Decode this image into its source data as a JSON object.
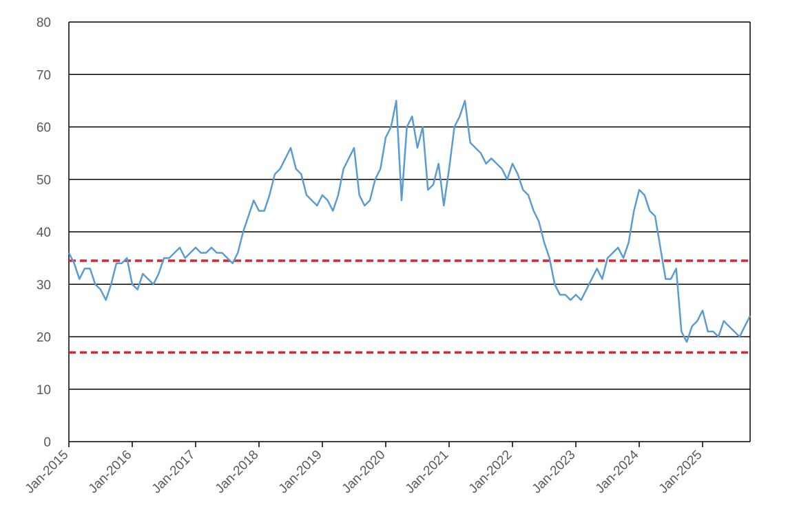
{
  "chart_data": {
    "type": "line",
    "title": "",
    "xlabel": "",
    "ylabel": "",
    "ylim": [
      0,
      80
    ],
    "y_ticks": [
      "0",
      "10",
      "20",
      "30",
      "40",
      "50",
      "60",
      "70",
      "80"
    ],
    "x_range": [
      "2015-01",
      "2025-10"
    ],
    "x_ticks": [
      "Jan-2015",
      "Jan-2016",
      "Jan-2017",
      "Jan-2018",
      "Jan-2019",
      "Jan-2020",
      "Jan-2021",
      "Jan-2022",
      "Jan-2023",
      "Jan-2024",
      "Jan-2025"
    ],
    "grid": true,
    "legend": "none",
    "colors": {
      "series": "#5b9bd5",
      "reference": "#d9262b",
      "grid": "#000000"
    },
    "series": [
      {
        "x": [
          "2015-01",
          "2015-02",
          "2015-03",
          "2015-04",
          "2015-05",
          "2015-06",
          "2015-07",
          "2015-08",
          "2015-09",
          "2015-10",
          "2015-11",
          "2015-12",
          "2016-01",
          "2016-02",
          "2016-03",
          "2016-04",
          "2016-05",
          "2016-06",
          "2016-07",
          "2016-08",
          "2016-09",
          "2016-10",
          "2016-11",
          "2016-12",
          "2017-01",
          "2017-02",
          "2017-03",
          "2017-04",
          "2017-05",
          "2017-06",
          "2017-07",
          "2017-08",
          "2017-09",
          "2017-10",
          "2017-11",
          "2017-12",
          "2018-01",
          "2018-02",
          "2018-03",
          "2018-04",
          "2018-05",
          "2018-06",
          "2018-07",
          "2018-08",
          "2018-09",
          "2018-10",
          "2018-11",
          "2018-12",
          "2019-01",
          "2019-02",
          "2019-03",
          "2019-04",
          "2019-05",
          "2019-06",
          "2019-07",
          "2019-08",
          "2019-09",
          "2019-10",
          "2019-11",
          "2019-12",
          "2020-01",
          "2020-02",
          "2020-03",
          "2020-04",
          "2020-05",
          "2020-06",
          "2020-07",
          "2020-08",
          "2020-09",
          "2020-10",
          "2020-11",
          "2020-12",
          "2021-01",
          "2021-02",
          "2021-03",
          "2021-04",
          "2021-05",
          "2021-06",
          "2021-07",
          "2021-08",
          "2021-09",
          "2021-10",
          "2021-11",
          "2021-12",
          "2022-01",
          "2022-02",
          "2022-03",
          "2022-04",
          "2022-05",
          "2022-06",
          "2022-07",
          "2022-08",
          "2022-09",
          "2022-10",
          "2022-11",
          "2022-12",
          "2023-01",
          "2023-02",
          "2023-03",
          "2023-04",
          "2023-05",
          "2023-06",
          "2023-07",
          "2023-08",
          "2023-09",
          "2023-10",
          "2023-11",
          "2023-12",
          "2024-01",
          "2024-02",
          "2024-03",
          "2024-04",
          "2024-05",
          "2024-06",
          "2024-07",
          "2024-08",
          "2024-09",
          "2024-10",
          "2024-11",
          "2024-12",
          "2025-01",
          "2025-02",
          "2025-03",
          "2025-04",
          "2025-05",
          "2025-06",
          "2025-07",
          "2025-08",
          "2025-09",
          "2025-10"
        ],
        "y": [
          36,
          34,
          31,
          33,
          33,
          30,
          29,
          27,
          30,
          34,
          34,
          35,
          30,
          29,
          32,
          31,
          30,
          32,
          35,
          35,
          36,
          37,
          35,
          36,
          37,
          36,
          36,
          37,
          36,
          36,
          35,
          34,
          36,
          40,
          43,
          46,
          44,
          44,
          47,
          51,
          52,
          54,
          56,
          52,
          51,
          47,
          46,
          45,
          47,
          46,
          44,
          47,
          52,
          54,
          56,
          47,
          45,
          46,
          50,
          52,
          58,
          60,
          65,
          46,
          60,
          62,
          56,
          60,
          48,
          49,
          53,
          45,
          52,
          60,
          62,
          65,
          57,
          56,
          55,
          53,
          54,
          53,
          52,
          50,
          53,
          51,
          48,
          47,
          44,
          42,
          38,
          35,
          30,
          28,
          28,
          27,
          28,
          27,
          29,
          31,
          33,
          31,
          35,
          36,
          37,
          35,
          38,
          44,
          48,
          47,
          44,
          43,
          37,
          31,
          31,
          33,
          21,
          19,
          22,
          23,
          25,
          21,
          21,
          20,
          23,
          22,
          21,
          20,
          22,
          24
        ]
      }
    ],
    "reference_lines": [
      34.5,
      17
    ]
  }
}
